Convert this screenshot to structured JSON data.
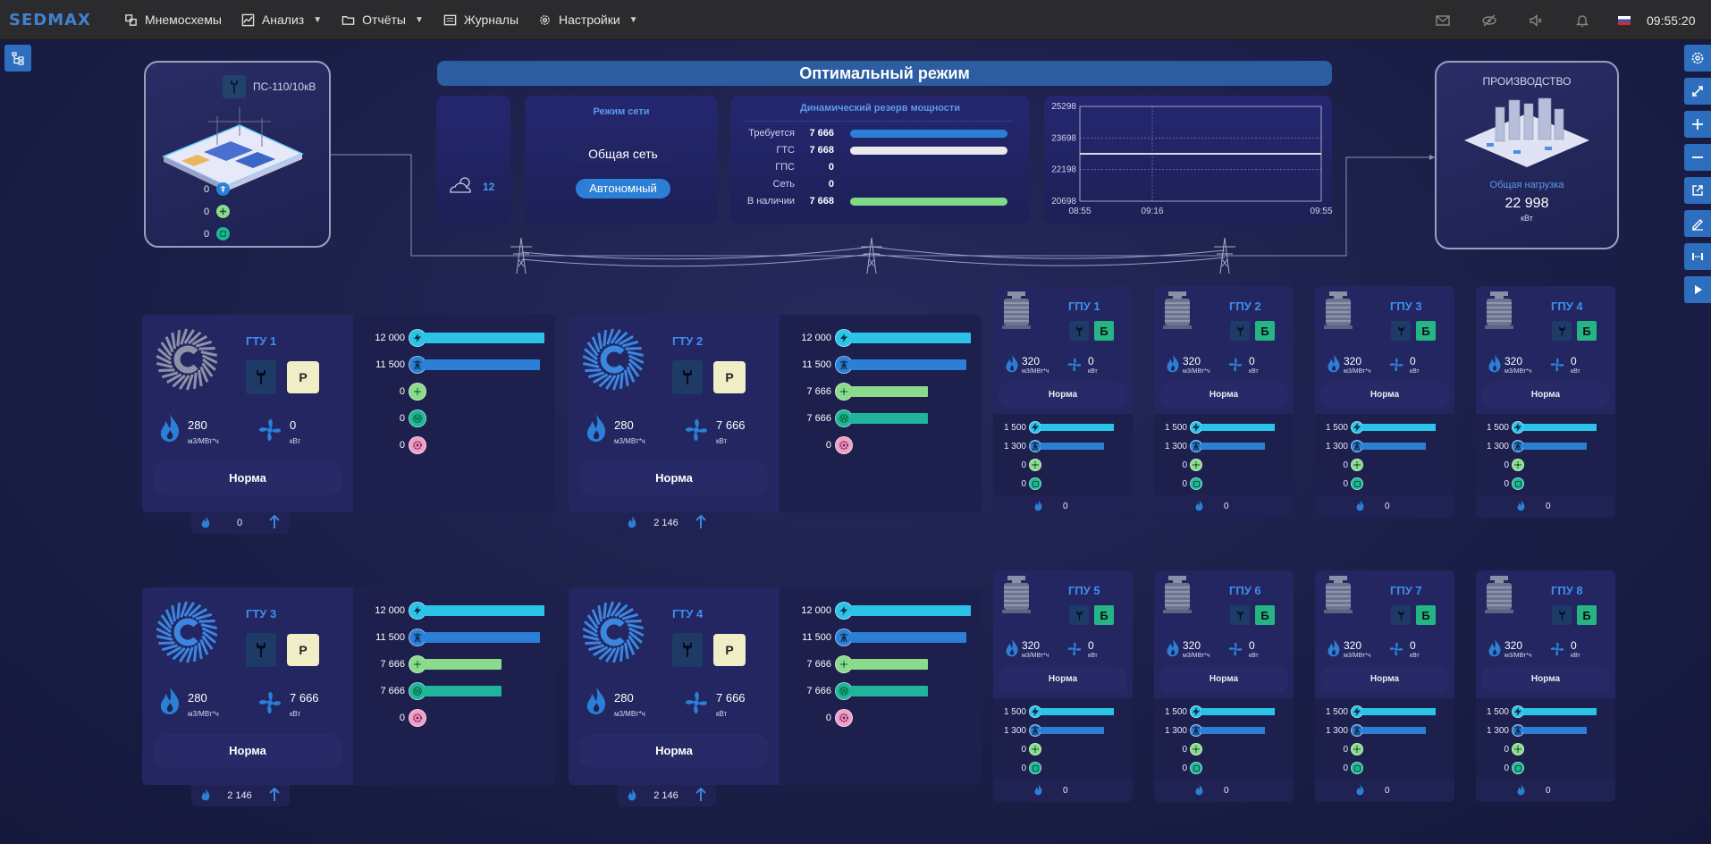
{
  "topbar": {
    "logo": "SEDMAX",
    "menu": [
      {
        "label": "Мнемосхемы",
        "chevron": false
      },
      {
        "label": "Анализ",
        "chevron": true
      },
      {
        "label": "Отчёты",
        "chevron": true
      },
      {
        "label": "Журналы",
        "chevron": false
      },
      {
        "label": "Настройки",
        "chevron": true
      }
    ],
    "time": "09:55:20"
  },
  "substation": {
    "title": "ПС-110/10кВ",
    "values": [
      "0",
      "0",
      "0"
    ]
  },
  "banner": "Оптимальный режим",
  "weather": {
    "temp": "12"
  },
  "regime": {
    "title": "Режим сети",
    "option1": "Общая сеть",
    "option2": "Автономный"
  },
  "reserve": {
    "title": "Динамический резерв мощности",
    "rows": [
      {
        "label": "Требуется",
        "value": "7 666",
        "fill": 0.98,
        "color": "#2d7fd6"
      },
      {
        "label": "ГТС",
        "value": "7 668",
        "fill": 0.98,
        "color": "#e9e9ee"
      },
      {
        "label": "ГПС",
        "value": "0",
        "fill": 0,
        "color": "#2d7fd6"
      },
      {
        "label": "Сеть",
        "value": "0",
        "fill": 0,
        "color": "#2d7fd6"
      },
      {
        "label": "В наличии",
        "value": "7 668",
        "fill": 0.98,
        "color": "#7fd986"
      }
    ]
  },
  "trend": {
    "y_ticks": [
      "25298",
      "23698",
      "22198",
      "20698"
    ],
    "x_ticks": [
      "08:55",
      "09:16",
      "09:55"
    ],
    "ylim": [
      20698,
      25298
    ],
    "value": 23000
  },
  "production": {
    "title": "ПРОИЗВОДСТВО",
    "label": "Общая нагрузка",
    "value": "22 998",
    "unit": "кВт"
  },
  "gtu": [
    {
      "title": "ГТУ 1",
      "mode": "Р",
      "gas": "280",
      "gas_unit": "м3/МВт*ч",
      "power": "0",
      "power_unit": "кВт",
      "status": "Норма",
      "tab_value": "0",
      "bars": [
        {
          "label": "12 000",
          "fill": 1.0
        },
        {
          "label": "11 500",
          "fill": 0.96
        },
        {
          "label": "0",
          "fill": 0
        },
        {
          "label": "0",
          "fill": 0
        },
        {
          "label": "0",
          "fill": 0
        }
      ]
    },
    {
      "title": "ГТУ 2",
      "mode": "Р",
      "gas": "280",
      "gas_unit": "м3/МВт*ч",
      "power": "7 666",
      "power_unit": "кВт",
      "status": "Норма",
      "tab_value": "2 146",
      "bars": [
        {
          "label": "12 000",
          "fill": 1.0
        },
        {
          "label": "11 500",
          "fill": 0.96
        },
        {
          "label": "7 666",
          "fill": 0.64
        },
        {
          "label": "7 666",
          "fill": 0.64
        },
        {
          "label": "0",
          "fill": 0
        }
      ]
    },
    {
      "title": "ГТУ 3",
      "mode": "Р",
      "gas": "280",
      "gas_unit": "м3/МВт*ч",
      "power": "7 666",
      "power_unit": "кВт",
      "status": "Норма",
      "tab_value": "2 146",
      "bars": [
        {
          "label": "12 000",
          "fill": 1.0
        },
        {
          "label": "11 500",
          "fill": 0.96
        },
        {
          "label": "7 666",
          "fill": 0.64
        },
        {
          "label": "7 666",
          "fill": 0.64
        },
        {
          "label": "0",
          "fill": 0
        }
      ]
    },
    {
      "title": "ГТУ 4",
      "mode": "Р",
      "gas": "280",
      "gas_unit": "м3/МВт*ч",
      "power": "7 666",
      "power_unit": "кВт",
      "status": "Норма",
      "tab_value": "2 146",
      "bars": [
        {
          "label": "12 000",
          "fill": 1.0
        },
        {
          "label": "11 500",
          "fill": 0.96
        },
        {
          "label": "7 666",
          "fill": 0.64
        },
        {
          "label": "7 666",
          "fill": 0.64
        },
        {
          "label": "0",
          "fill": 0
        }
      ]
    }
  ],
  "gpu": [
    {
      "title": "ГПУ 1",
      "mode": "Б",
      "gas": "320",
      "gas_unit": "м3/МВт*ч",
      "power": "0",
      "power_unit": "кВт",
      "status": "Норма",
      "tab_value": "0",
      "bars": [
        {
          "label": "1 500",
          "fill": 1.0
        },
        {
          "label": "1 300",
          "fill": 0.87
        },
        {
          "label": "0",
          "fill": 0
        },
        {
          "label": "0",
          "fill": 0
        }
      ]
    },
    {
      "title": "ГПУ 2",
      "mode": "Б",
      "gas": "320",
      "gas_unit": "м3/МВт*ч",
      "power": "0",
      "power_unit": "кВт",
      "status": "Норма",
      "tab_value": "0",
      "bars": [
        {
          "label": "1 500",
          "fill": 1.0
        },
        {
          "label": "1 300",
          "fill": 0.87
        },
        {
          "label": "0",
          "fill": 0
        },
        {
          "label": "0",
          "fill": 0
        }
      ]
    },
    {
      "title": "ГПУ 3",
      "mode": "Б",
      "gas": "320",
      "gas_unit": "м3/МВт*ч",
      "power": "0",
      "power_unit": "кВт",
      "status": "Норма",
      "tab_value": "0",
      "bars": [
        {
          "label": "1 500",
          "fill": 1.0
        },
        {
          "label": "1 300",
          "fill": 0.87
        },
        {
          "label": "0",
          "fill": 0
        },
        {
          "label": "0",
          "fill": 0
        }
      ]
    },
    {
      "title": "ГПУ 4",
      "mode": "Б",
      "gas": "320",
      "gas_unit": "м3/МВт*ч",
      "power": "0",
      "power_unit": "кВт",
      "status": "Норма",
      "tab_value": "0",
      "bars": [
        {
          "label": "1 500",
          "fill": 1.0
        },
        {
          "label": "1 300",
          "fill": 0.87
        },
        {
          "label": "0",
          "fill": 0
        },
        {
          "label": "0",
          "fill": 0
        }
      ]
    },
    {
      "title": "ГПУ 5",
      "mode": "Б",
      "gas": "320",
      "gas_unit": "м3/МВт*ч",
      "power": "0",
      "power_unit": "кВт",
      "status": "Норма",
      "tab_value": "0",
      "bars": [
        {
          "label": "1 500",
          "fill": 1.0
        },
        {
          "label": "1 300",
          "fill": 0.87
        },
        {
          "label": "0",
          "fill": 0
        },
        {
          "label": "0",
          "fill": 0
        }
      ]
    },
    {
      "title": "ГПУ 6",
      "mode": "Б",
      "gas": "320",
      "gas_unit": "м3/МВт*ч",
      "power": "0",
      "power_unit": "кВт",
      "status": "Норма",
      "tab_value": "0",
      "bars": [
        {
          "label": "1 500",
          "fill": 1.0
        },
        {
          "label": "1 300",
          "fill": 0.87
        },
        {
          "label": "0",
          "fill": 0
        },
        {
          "label": "0",
          "fill": 0
        }
      ]
    },
    {
      "title": "ГПУ 7",
      "mode": "Б",
      "gas": "320",
      "gas_unit": "м3/МВт*ч",
      "power": "0",
      "power_unit": "кВт",
      "status": "Норма",
      "tab_value": "0",
      "bars": [
        {
          "label": "1 500",
          "fill": 1.0
        },
        {
          "label": "1 300",
          "fill": 0.87
        },
        {
          "label": "0",
          "fill": 0
        },
        {
          "label": "0",
          "fill": 0
        }
      ]
    },
    {
      "title": "ГПУ 8",
      "mode": "Б",
      "gas": "320",
      "gas_unit": "м3/МВт*ч",
      "power": "0",
      "power_unit": "кВт",
      "status": "Норма",
      "tab_value": "0",
      "bars": [
        {
          "label": "1 500",
          "fill": 1.0
        },
        {
          "label": "1 300",
          "fill": 0.87
        },
        {
          "label": "0",
          "fill": 0
        },
        {
          "label": "0",
          "fill": 0
        }
      ]
    }
  ],
  "colors": {
    "bar_cyan": "#2bc3e8",
    "bar_blue": "#2b7fd6",
    "bar_green": "#8adb8a",
    "bar_teal": "#20b49a",
    "icon_pink": "#f0a0c8"
  }
}
